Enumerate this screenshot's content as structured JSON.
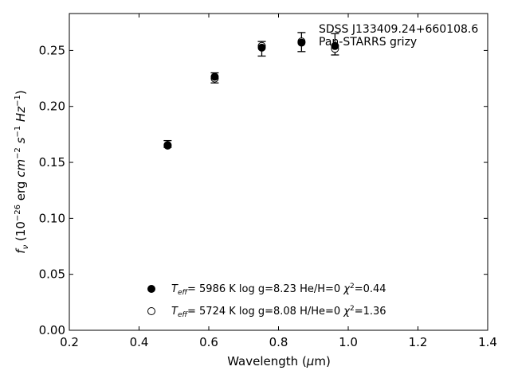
{
  "chart_data": {
    "type": "scatter",
    "title": "",
    "annotation": [
      "SDSS J133409.24+660108.6",
      "Pan-STARRS grizy"
    ],
    "xlabel": {
      "pre": "Wavelength (",
      "greek": "μ",
      "post": "m)"
    },
    "ylabel": {
      "f": "f",
      "nu": "ν",
      "a": " (10",
      "e26": "−26",
      "b": " erg ",
      "cm": "cm",
      "e2": "−2",
      "c": " ",
      "s": "s",
      "e1a": "−1",
      "d": " ",
      "Hz": "Hz",
      "e1b": "−1",
      "close": ")"
    },
    "xlim": [
      0.2,
      1.4
    ],
    "ylim": [
      0.0,
      0.283
    ],
    "xticks": [
      0.2,
      0.4,
      0.6,
      0.8,
      1.0,
      1.2,
      1.4
    ],
    "xtick_labels": [
      "0.2",
      "0.4",
      "0.6",
      "0.8",
      "1.0",
      "1.2",
      "1.4"
    ],
    "yticks": [
      0.0,
      0.05,
      0.1,
      0.15,
      0.2,
      0.25
    ],
    "ytick_labels": [
      "0.00",
      "0.05",
      "0.10",
      "0.15",
      "0.20",
      "0.25"
    ],
    "grid": false,
    "legend_position": "bottom-center",
    "observed": {
      "x": [
        0.482,
        0.617,
        0.752,
        0.866,
        0.962
      ],
      "y": [
        0.1665,
        0.2255,
        0.2515,
        0.2575,
        0.2555
      ],
      "yerr": [
        0.003,
        0.0045,
        0.0065,
        0.0085,
        0.0095
      ]
    },
    "series": [
      {
        "marker": "filled-circle",
        "legend": {
          "T": "T",
          "sub": "eff",
          "text": "=  5986 K  log g=8.23  He/H=0  ",
          "chi": "χ",
          "sup": "2",
          "val": "=0.44"
        },
        "x": [
          0.482,
          0.617,
          0.752,
          0.866,
          0.962
        ],
        "y": [
          0.1655,
          0.2265,
          0.2525,
          0.257,
          0.254
        ]
      },
      {
        "marker": "open-circle",
        "legend": {
          "T": "T",
          "sub": "eff",
          "text": "=  5724 K  log g=8.08  H/He=0  ",
          "chi": "χ",
          "sup": "2",
          "val": "=1.36"
        },
        "x": [
          0.482,
          0.617,
          0.752,
          0.866,
          0.962
        ],
        "y": [
          0.165,
          0.225,
          0.254,
          0.258,
          0.2515
        ]
      }
    ]
  }
}
